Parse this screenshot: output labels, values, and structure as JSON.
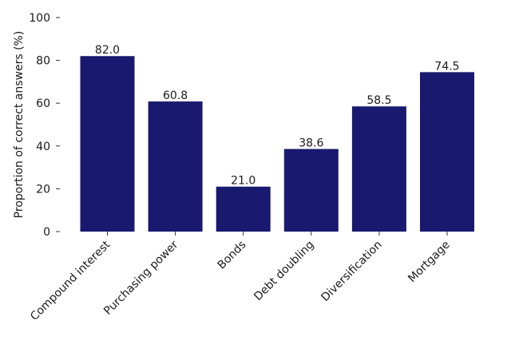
{
  "chart_data": {
    "type": "bar",
    "title": "",
    "xlabel": "",
    "ylabel": "Proportion of correct answers (%)",
    "categories": [
      "Compound interest",
      "Purchasing power",
      "Bonds",
      "Debt doubling",
      "Diversification",
      "Mortgage"
    ],
    "values": [
      82.0,
      60.8,
      21.0,
      38.6,
      58.5,
      74.5
    ],
    "value_labels": [
      "82.0",
      "60.8",
      "21.0",
      "38.6",
      "58.5",
      "74.5"
    ],
    "ylim": [
      0,
      100
    ],
    "yticks": [
      0,
      20,
      40,
      60,
      80,
      100
    ],
    "ytick_labels": [
      "0",
      "20",
      "40",
      "60",
      "80",
      "100"
    ],
    "bar_color": "#191970",
    "grid": false,
    "legend": "none"
  }
}
